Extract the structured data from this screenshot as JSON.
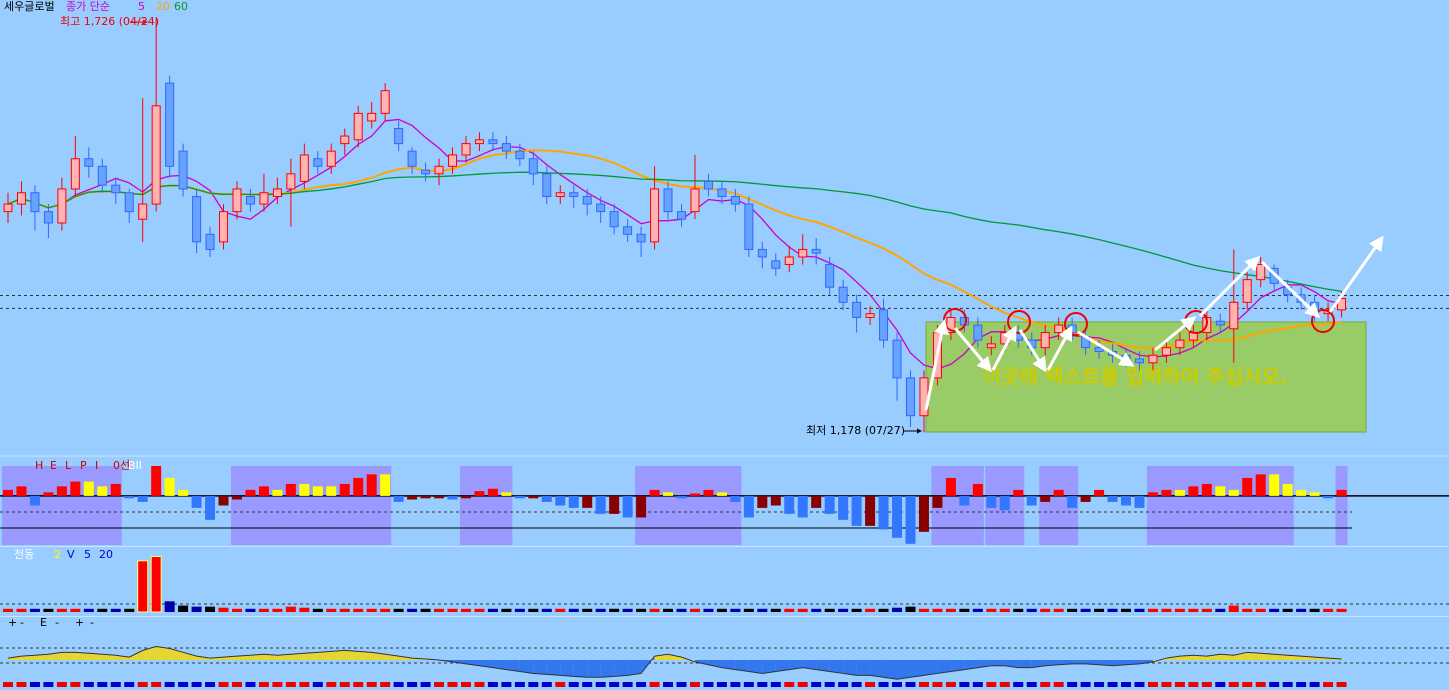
{
  "chart_data": {
    "type": "candlestick",
    "title": "세우글로벌",
    "ma_label": "종가 단순",
    "ma_periods": [
      5,
      20,
      60
    ],
    "ma_colors": [
      "#cc00cc",
      "#ffa500",
      "#009933"
    ],
    "high_label": "최고 1,726 (04/24)",
    "low_label": "최저 1,178 (07/27)",
    "note": "이곳에 텍스트를 입력하여 주십시오.",
    "ylim": [
      1148,
      1750
    ],
    "hlines": [
      1359,
      1342
    ],
    "up_color": "#ff0000",
    "down_color": "#3366ff",
    "open": [
      1470,
      1480,
      1495,
      1470,
      1455,
      1500,
      1540,
      1530,
      1505,
      1495,
      1460,
      1480,
      1640,
      1550,
      1490,
      1440,
      1430,
      1470,
      1490,
      1480,
      1490,
      1500,
      1510,
      1540,
      1530,
      1560,
      1565,
      1590,
      1600,
      1580,
      1550,
      1525,
      1520,
      1530,
      1545,
      1560,
      1565,
      1560,
      1550,
      1540,
      1520,
      1490,
      1495,
      1490,
      1480,
      1470,
      1450,
      1440,
      1430,
      1500,
      1470,
      1470,
      1510,
      1500,
      1490,
      1480,
      1420,
      1405,
      1400,
      1410,
      1420,
      1400,
      1370,
      1350,
      1330,
      1340,
      1300,
      1250,
      1200,
      1250,
      1310,
      1330,
      1320,
      1290,
      1295,
      1310,
      1300,
      1290,
      1310,
      1320,
      1305,
      1290,
      1285,
      1280,
      1275,
      1270,
      1280,
      1290,
      1300,
      1310,
      1325,
      1315,
      1350,
      1380,
      1395,
      1370,
      1360,
      1350,
      1335,
      1340
    ],
    "high": [
      1495,
      1510,
      1505,
      1480,
      1515,
      1570,
      1555,
      1540,
      1515,
      1500,
      1620,
      1726,
      1650,
      1560,
      1500,
      1450,
      1480,
      1510,
      1500,
      1520,
      1515,
      1540,
      1560,
      1550,
      1560,
      1580,
      1610,
      1615,
      1640,
      1590,
      1555,
      1535,
      1540,
      1555,
      1570,
      1575,
      1575,
      1570,
      1560,
      1550,
      1530,
      1505,
      1505,
      1500,
      1490,
      1480,
      1460,
      1450,
      1530,
      1510,
      1480,
      1545,
      1520,
      1510,
      1500,
      1490,
      1430,
      1415,
      1425,
      1440,
      1435,
      1410,
      1380,
      1360,
      1345,
      1355,
      1310,
      1260,
      1260,
      1320,
      1340,
      1340,
      1330,
      1305,
      1320,
      1320,
      1310,
      1320,
      1330,
      1330,
      1315,
      1300,
      1295,
      1290,
      1285,
      1290,
      1300,
      1310,
      1320,
      1340,
      1335,
      1420,
      1390,
      1410,
      1400,
      1380,
      1370,
      1360,
      1350,
      1365
    ],
    "low": [
      1455,
      1465,
      1445,
      1435,
      1445,
      1490,
      1515,
      1495,
      1480,
      1455,
      1430,
      1470,
      1515,
      1490,
      1415,
      1410,
      1420,
      1460,
      1470,
      1470,
      1480,
      1450,
      1500,
      1520,
      1520,
      1545,
      1555,
      1580,
      1590,
      1550,
      1520,
      1510,
      1505,
      1520,
      1535,
      1550,
      1550,
      1540,
      1530,
      1505,
      1480,
      1480,
      1475,
      1465,
      1455,
      1440,
      1430,
      1410,
      1420,
      1460,
      1450,
      1460,
      1490,
      1480,
      1470,
      1410,
      1395,
      1385,
      1390,
      1400,
      1400,
      1360,
      1340,
      1310,
      1320,
      1290,
      1220,
      1185,
      1178,
      1240,
      1300,
      1310,
      1290,
      1280,
      1285,
      1290,
      1280,
      1280,
      1300,
      1300,
      1280,
      1275,
      1270,
      1265,
      1260,
      1260,
      1270,
      1280,
      1290,
      1300,
      1310,
      1270,
      1340,
      1370,
      1365,
      1350,
      1340,
      1325,
      1325,
      1330
    ],
    "close": [
      1480,
      1495,
      1470,
      1455,
      1500,
      1540,
      1530,
      1505,
      1495,
      1470,
      1480,
      1610,
      1530,
      1500,
      1430,
      1420,
      1470,
      1500,
      1480,
      1495,
      1500,
      1520,
      1545,
      1530,
      1550,
      1570,
      1600,
      1600,
      1630,
      1560,
      1530,
      1520,
      1530,
      1545,
      1560,
      1565,
      1560,
      1550,
      1540,
      1520,
      1490,
      1495,
      1490,
      1480,
      1470,
      1450,
      1440,
      1430,
      1500,
      1470,
      1460,
      1500,
      1500,
      1490,
      1480,
      1420,
      1410,
      1395,
      1410,
      1420,
      1415,
      1370,
      1350,
      1330,
      1335,
      1300,
      1250,
      1200,
      1250,
      1310,
      1330,
      1320,
      1300,
      1295,
      1310,
      1300,
      1290,
      1310,
      1320,
      1310,
      1290,
      1285,
      1280,
      1275,
      1270,
      1280,
      1290,
      1300,
      1310,
      1330,
      1320,
      1350,
      1380,
      1400,
      1375,
      1360,
      1350,
      1335,
      1340,
      1355
    ],
    "panel1": {
      "labels": [
        "H",
        "E",
        "L",
        "P",
        "I",
        "0선",
        "BII"
      ],
      "ylim": [
        -41,
        30
      ],
      "values": [
        5,
        8,
        -8,
        3,
        8,
        12,
        12,
        8,
        10,
        -2,
        -5,
        25,
        15,
        5,
        -10,
        -20,
        -8,
        -3,
        5,
        8,
        5,
        10,
        10,
        8,
        8,
        10,
        15,
        18,
        18,
        -5,
        -3,
        -2,
        -2,
        -3,
        -2,
        4,
        6,
        3,
        -2,
        -2,
        -5,
        -8,
        -10,
        -10,
        -15,
        -15,
        -18,
        -18,
        5,
        3,
        -2,
        2,
        5,
        3,
        -5,
        -18,
        -10,
        -8,
        -15,
        -18,
        -10,
        -15,
        -20,
        -25,
        -25,
        -28,
        -35,
        -40,
        -30,
        -10,
        15,
        -8,
        10,
        -10,
        -12,
        5,
        -8,
        -5,
        5,
        -10,
        -5,
        5,
        -5,
        -8,
        -10,
        3,
        5,
        5,
        8,
        10,
        8,
        5,
        15,
        18,
        18,
        10,
        5,
        3,
        -2,
        5
      ],
      "highlight_ranges": [
        [
          0,
          8
        ],
        [
          17,
          28
        ],
        [
          34,
          37
        ],
        [
          47,
          54
        ],
        [
          69,
          72
        ],
        [
          73,
          75
        ],
        [
          77,
          79
        ],
        [
          85,
          95
        ],
        [
          99,
          99
        ]
      ]
    },
    "panel2": {
      "labels": [
        "전동",
        "2",
        "V",
        "5",
        "20"
      ],
      "ylim": [
        0,
        60
      ],
      "values": [
        3,
        3,
        3,
        3,
        3,
        3,
        3,
        3,
        3,
        3,
        48,
        52,
        10,
        6,
        5,
        5,
        4,
        3,
        3,
        3,
        3,
        5,
        4,
        3,
        3,
        3,
        3,
        3,
        3,
        3,
        3,
        3,
        3,
        3,
        3,
        3,
        3,
        3,
        3,
        3,
        3,
        3,
        3,
        3,
        3,
        3,
        3,
        3,
        3,
        3,
        3,
        3,
        3,
        3,
        3,
        3,
        3,
        3,
        3,
        3,
        3,
        3,
        3,
        3,
        3,
        3,
        4,
        5,
        3,
        3,
        3,
        3,
        3,
        3,
        3,
        3,
        3,
        3,
        3,
        3,
        3,
        3,
        3,
        3,
        3,
        3,
        3,
        3,
        3,
        3,
        3,
        6,
        3,
        3,
        3,
        3,
        3,
        3,
        3,
        3
      ]
    },
    "panel3": {
      "labels": [
        "+",
        "-",
        "E",
        "-",
        "+",
        "-"
      ],
      "ylim": [
        -25,
        25
      ],
      "values": [
        2,
        4,
        5,
        6,
        8,
        8,
        7,
        6,
        5,
        3,
        10,
        14,
        12,
        8,
        4,
        2,
        3,
        4,
        5,
        6,
        5,
        6,
        7,
        8,
        9,
        10,
        9,
        8,
        6,
        4,
        2,
        1,
        0,
        -2,
        -4,
        -6,
        -8,
        -10,
        -12,
        -14,
        -15,
        -16,
        -17,
        -18,
        -18,
        -17,
        -16,
        -14,
        4,
        6,
        3,
        -2,
        -5,
        -8,
        -10,
        -12,
        -14,
        -12,
        -10,
        -8,
        -10,
        -12,
        -14,
        -16,
        -16,
        -18,
        -20,
        -18,
        -16,
        -14,
        -12,
        -10,
        -8,
        -6,
        -6,
        -8,
        -8,
        -6,
        -5,
        -4,
        -4,
        -5,
        -6,
        -5,
        -4,
        -2,
        2,
        4,
        5,
        4,
        6,
        5,
        8,
        7,
        6,
        5,
        4,
        3,
        2,
        1
      ]
    }
  }
}
